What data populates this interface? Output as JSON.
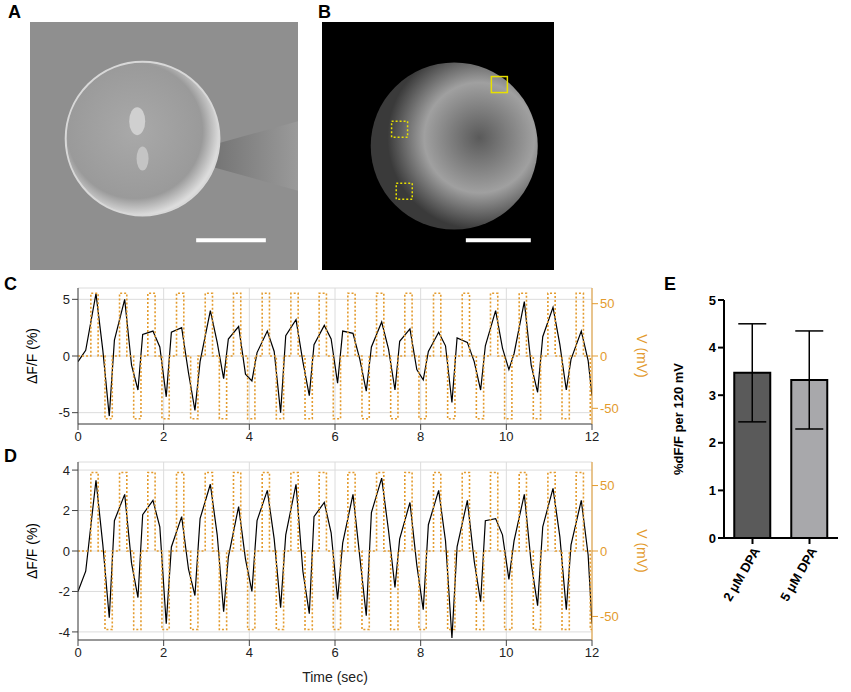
{
  "image_panels": [
    "A",
    "B"
  ],
  "chart_data": [
    {
      "panel": "C",
      "type": "line",
      "ylabel": "ΔF/F (%)",
      "y2label": "V (mV)",
      "xlim": [
        0,
        12
      ],
      "xticks": [
        0,
        2,
        4,
        6,
        8,
        10,
        12
      ],
      "ylim": [
        -6,
        6
      ],
      "yticks": [
        -5,
        0,
        5
      ],
      "y2lim": [
        -65,
        65
      ],
      "y2ticks": [
        -50,
        0,
        50
      ],
      "grid": true,
      "series": [
        {
          "color": "#000000",
          "type": "line",
          "line_style": "solid",
          "x": [
            0,
            0.18,
            0.42,
            0.58,
            0.73,
            0.85,
            1.09,
            1.25,
            1.4,
            1.51,
            1.75,
            1.91,
            2.06,
            2.18,
            2.42,
            2.58,
            2.73,
            2.85,
            3.09,
            3.25,
            3.4,
            3.51,
            3.75,
            3.91,
            4.06,
            4.18,
            4.42,
            4.58,
            4.73,
            4.85,
            5.09,
            5.25,
            5.4,
            5.51,
            5.75,
            5.91,
            6.06,
            6.18,
            6.42,
            6.58,
            6.73,
            6.85,
            7.09,
            7.25,
            7.4,
            7.51,
            7.75,
            7.91,
            8.06,
            8.18,
            8.42,
            8.58,
            8.73,
            8.85,
            9.09,
            9.25,
            9.4,
            9.51,
            9.75,
            9.91,
            10.06,
            10.18,
            10.42,
            10.58,
            10.73,
            10.85,
            11.09,
            11.25,
            11.4,
            11.51,
            11.75,
            11.91,
            12.0
          ],
          "values": [
            -0.5,
            0.5,
            5.5,
            0.5,
            -5.3,
            1.4,
            5.0,
            -0.8,
            -3.0,
            1.9,
            2.2,
            0.8,
            -3.6,
            2.1,
            2.5,
            -1.5,
            -4.8,
            -0.5,
            4.0,
            1.2,
            -2.0,
            1.5,
            2.6,
            -1.6,
            -2.2,
            0.3,
            2.2,
            0.4,
            -5.0,
            1.8,
            3.2,
            -0.5,
            -3.5,
            1.0,
            2.7,
            1.5,
            -2.4,
            2.2,
            2.0,
            -0.3,
            -3.1,
            0.8,
            3.0,
            0.6,
            -3.0,
            1.3,
            2.4,
            -1.2,
            -2.1,
            0.4,
            2.1,
            0.9,
            -4.1,
            1.6,
            1.2,
            -0.5,
            -3.0,
            0.9,
            4.0,
            0.7,
            -1.2,
            0.2,
            4.8,
            -0.8,
            -3.2,
            1.7,
            4.3,
            1.0,
            -3.0,
            -0.3,
            2.2,
            -0.4,
            -3.5
          ]
        },
        {
          "color": "#e39b2e",
          "type": "step",
          "line_style": "dotted",
          "axis": "y2",
          "x": [
            0,
            0.3,
            0.47,
            0.63,
            0.8,
            0.97,
            1.14,
            1.3,
            1.47,
            1.63,
            1.8,
            1.96,
            2.13,
            2.3,
            2.47,
            2.63,
            2.8,
            2.97,
            3.14,
            3.3,
            3.47,
            3.63,
            3.8,
            3.96,
            4.13,
            4.3,
            4.47,
            4.63,
            4.8,
            4.97,
            5.14,
            5.3,
            5.47,
            5.63,
            5.8,
            5.96,
            6.13,
            6.3,
            6.47,
            6.63,
            6.8,
            6.97,
            7.14,
            7.3,
            7.47,
            7.63,
            7.8,
            7.96,
            8.13,
            8.3,
            8.47,
            8.63,
            8.8,
            8.97,
            9.14,
            9.3,
            9.47,
            9.63,
            9.8,
            9.96,
            10.13,
            10.3,
            10.47,
            10.63,
            10.8,
            10.97,
            11.14,
            11.3,
            11.47,
            11.63,
            11.8,
            11.96,
            12.0
          ],
          "values": [
            0,
            60,
            0,
            -60,
            0,
            60,
            0,
            -60,
            0,
            60,
            0,
            -60,
            0,
            60,
            0,
            -60,
            0,
            60,
            0,
            -60,
            0,
            60,
            0,
            -60,
            0,
            60,
            0,
            -60,
            0,
            60,
            0,
            -60,
            0,
            60,
            0,
            -60,
            0,
            60,
            0,
            -60,
            0,
            60,
            0,
            -60,
            0,
            60,
            0,
            -60,
            0,
            60,
            0,
            -60,
            0,
            60,
            0,
            -60,
            0,
            60,
            0,
            -60,
            0,
            60,
            0,
            -60,
            0,
            60,
            0,
            -60,
            0,
            60,
            0,
            -60,
            -60
          ]
        }
      ]
    },
    {
      "panel": "D",
      "type": "line",
      "xlabel": "Time (sec)",
      "ylabel": "ΔF/F (%)",
      "y2label": "V (mV)",
      "xlim": [
        0,
        12
      ],
      "xticks": [
        0,
        2,
        4,
        6,
        8,
        10,
        12
      ],
      "ylim": [
        -4.4,
        4.4
      ],
      "yticks": [
        -4,
        -2,
        0,
        2,
        4
      ],
      "y2lim": [
        -68,
        68
      ],
      "y2ticks": [
        -50,
        0,
        50
      ],
      "grid": true,
      "series": [
        {
          "color": "#000000",
          "type": "line",
          "line_style": "solid",
          "x": [
            0,
            0.18,
            0.42,
            0.58,
            0.73,
            0.85,
            1.09,
            1.25,
            1.4,
            1.51,
            1.75,
            1.91,
            2.06,
            2.18,
            2.42,
            2.58,
            2.73,
            2.85,
            3.09,
            3.25,
            3.4,
            3.51,
            3.75,
            3.91,
            4.06,
            4.18,
            4.42,
            4.58,
            4.73,
            4.85,
            5.09,
            5.25,
            5.4,
            5.51,
            5.75,
            5.91,
            6.06,
            6.18,
            6.42,
            6.58,
            6.73,
            6.85,
            7.09,
            7.25,
            7.4,
            7.51,
            7.75,
            7.91,
            8.06,
            8.18,
            8.42,
            8.58,
            8.73,
            8.85,
            9.09,
            9.25,
            9.4,
            9.51,
            9.75,
            9.91,
            10.06,
            10.18,
            10.42,
            10.58,
            10.73,
            10.85,
            11.09,
            11.25,
            11.4,
            11.51,
            11.75,
            11.91,
            12.0
          ],
          "values": [
            -2.0,
            -1.0,
            3.5,
            0.3,
            -3.3,
            1.5,
            2.8,
            -0.6,
            -2.3,
            1.8,
            2.5,
            1.2,
            -3.6,
            0.2,
            1.7,
            -0.9,
            -2.2,
            1.6,
            3.3,
            0.8,
            -3.0,
            -0.3,
            2.2,
            -0.4,
            -2.0,
            1.5,
            3.0,
            0.6,
            -2.8,
            0.8,
            3.3,
            -1.0,
            -3.1,
            1.7,
            2.4,
            0.9,
            -2.4,
            0.4,
            2.8,
            -0.3,
            -3.2,
            1.9,
            3.6,
            1.0,
            -1.8,
            0.6,
            2.4,
            -0.7,
            -2.9,
            1.3,
            3.0,
            0.5,
            -4.3,
            0.2,
            2.5,
            -0.5,
            -2.5,
            1.5,
            1.6,
            0.8,
            -1.4,
            0.5,
            2.8,
            -0.6,
            -2.7,
            1.2,
            3.1,
            0.7,
            -2.9,
            0.3,
            2.5,
            -0.2,
            -3.6
          ]
        },
        {
          "color": "#e39b2e",
          "type": "step",
          "line_style": "dotted",
          "axis": "y2",
          "x": [
            0,
            0.3,
            0.47,
            0.63,
            0.8,
            0.97,
            1.14,
            1.3,
            1.47,
            1.63,
            1.8,
            1.96,
            2.13,
            2.3,
            2.47,
            2.63,
            2.8,
            2.97,
            3.14,
            3.3,
            3.47,
            3.63,
            3.8,
            3.96,
            4.13,
            4.3,
            4.47,
            4.63,
            4.8,
            4.97,
            5.14,
            5.3,
            5.47,
            5.63,
            5.8,
            5.96,
            6.13,
            6.3,
            6.47,
            6.63,
            6.8,
            6.97,
            7.14,
            7.3,
            7.47,
            7.63,
            7.8,
            7.96,
            8.13,
            8.3,
            8.47,
            8.63,
            8.8,
            8.97,
            9.14,
            9.3,
            9.47,
            9.63,
            9.8,
            9.96,
            10.13,
            10.3,
            10.47,
            10.63,
            10.8,
            10.97,
            11.14,
            11.3,
            11.47,
            11.63,
            11.8,
            11.96,
            12.0
          ],
          "values": [
            0,
            60,
            0,
            -60,
            0,
            60,
            0,
            -60,
            0,
            60,
            0,
            -60,
            0,
            60,
            0,
            -60,
            0,
            60,
            0,
            -60,
            0,
            60,
            0,
            -60,
            0,
            60,
            0,
            -60,
            0,
            60,
            0,
            -60,
            0,
            60,
            0,
            -60,
            0,
            60,
            0,
            -60,
            0,
            60,
            0,
            -60,
            0,
            60,
            0,
            -60,
            0,
            60,
            0,
            -60,
            0,
            60,
            0,
            -60,
            0,
            60,
            0,
            -60,
            0,
            60,
            0,
            -60,
            0,
            60,
            0,
            -60,
            0,
            60,
            0,
            -60,
            -60
          ]
        }
      ]
    },
    {
      "panel": "E",
      "type": "bar",
      "ylabel": "%dF/F per 120 mV",
      "categories": [
        "2 μM DPA",
        "5 μM DPA"
      ],
      "values": [
        3.47,
        3.32
      ],
      "error": [
        1.03,
        1.03
      ],
      "colors": [
        "#5a5a5a",
        "#a8a8ab"
      ],
      "ylim": [
        0,
        5
      ],
      "yticks": [
        0,
        1,
        2,
        3,
        4,
        5
      ]
    }
  ]
}
